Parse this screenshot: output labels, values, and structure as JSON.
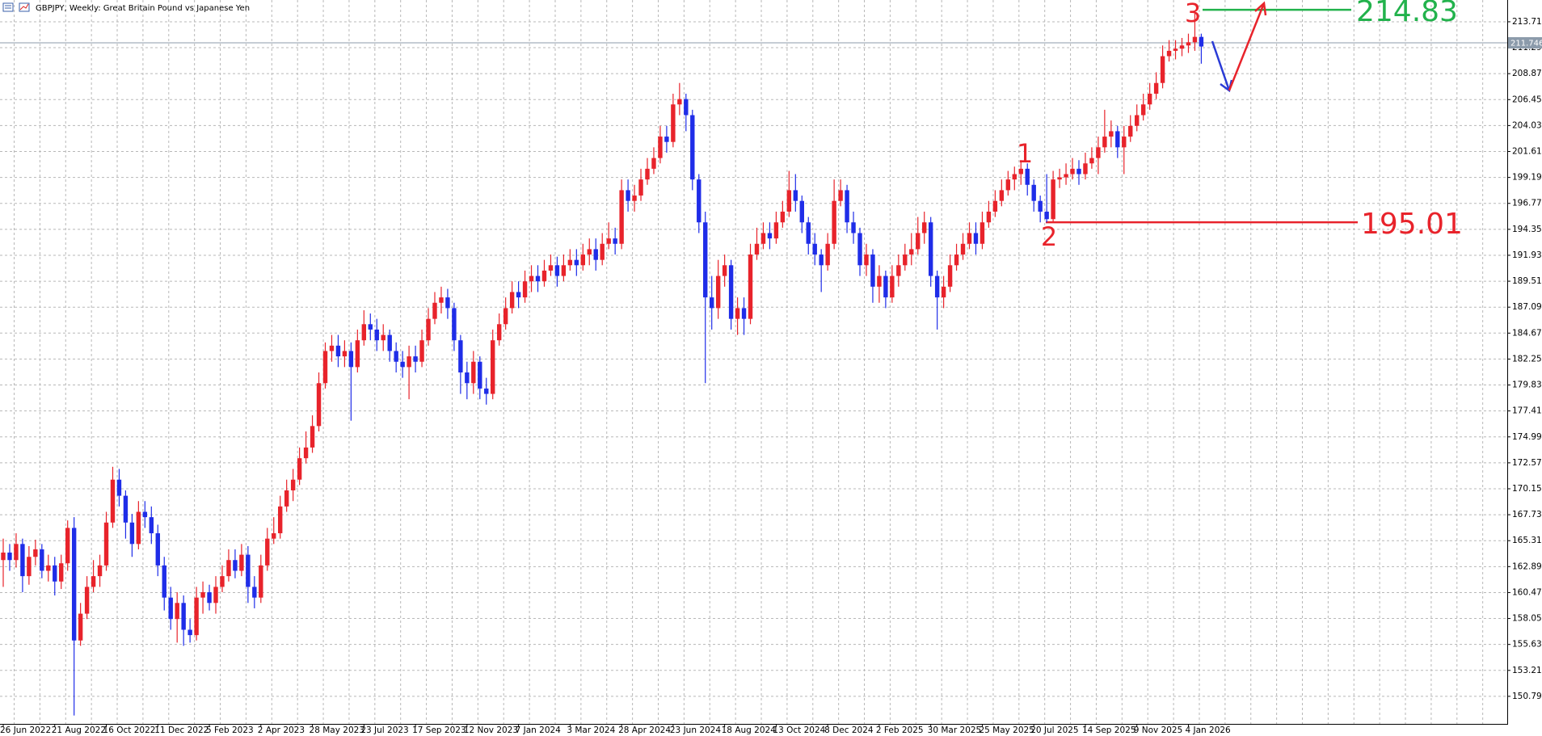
{
  "chart_data": {
    "type": "candlestick",
    "title": "GBPJPY, Weekly:  Great Britain Pound vs Japanese Yen",
    "up_color": "#e8232b",
    "down_color": "#1f2de8",
    "grid": true,
    "categories": [
      "26 Jun 2022",
      null,
      null,
      null,
      null,
      null,
      null,
      null,
      "21 Aug 2022",
      null,
      null,
      null,
      null,
      null,
      null,
      null,
      "16 Oct 2022",
      null,
      null,
      null,
      null,
      null,
      null,
      null,
      "11 Dec 2022",
      null,
      null,
      null,
      null,
      null,
      null,
      null,
      "5 Feb 2023",
      null,
      null,
      null,
      null,
      null,
      null,
      null,
      "2 Apr 2023",
      null,
      null,
      null,
      null,
      null,
      null,
      null,
      "28 May 2023",
      null,
      null,
      null,
      null,
      null,
      null,
      null,
      "23 Jul 2023",
      null,
      null,
      null,
      null,
      null,
      null,
      null,
      "17 Sep 2023",
      null,
      null,
      null,
      null,
      null,
      null,
      null,
      "12 Nov 2023",
      null,
      null,
      null,
      null,
      null,
      null,
      null,
      "7 Jan 2024",
      null,
      null,
      null,
      null,
      null,
      null,
      null,
      "3 Mar 2024",
      null,
      null,
      null,
      null,
      null,
      null,
      null,
      "28 Apr 2024",
      null,
      null,
      null,
      null,
      null,
      null,
      null,
      "23 Jun 2024",
      null,
      null,
      null,
      null,
      null,
      null,
      null,
      "18 Aug 2024",
      null,
      null,
      null,
      null,
      null,
      null,
      null,
      "13 Oct 2024",
      null,
      null,
      null,
      null,
      null,
      null,
      null,
      "8 Dec 2024",
      null,
      null,
      null,
      null,
      null,
      null,
      null,
      "2 Feb 2025",
      null,
      null,
      null,
      null,
      null,
      null,
      null,
      "30 Mar 2025",
      null,
      null,
      null,
      null,
      null,
      null,
      null,
      "25 May 2025",
      null,
      null,
      null,
      null,
      null,
      null,
      null,
      "20 Jul 2025",
      null,
      null,
      null,
      null,
      null,
      null,
      null,
      "14 Sep 2025",
      null,
      null,
      null,
      null,
      null,
      null,
      null,
      "9 Nov 2025",
      null,
      null,
      null,
      null,
      null,
      null,
      null,
      "4 Jan 2026",
      null,
      null
    ],
    "open": [
      163.5,
      164.2,
      163.5,
      165.0,
      162.0,
      163.8,
      164.5,
      162.5,
      163.0,
      161.5,
      163.2,
      166.5,
      156.0,
      158.5,
      161.0,
      162.0,
      163.0,
      167.0,
      171.0,
      169.5,
      167.0,
      165.0,
      168.0,
      167.5,
      166.0,
      163.0,
      160.0,
      158.0,
      159.5,
      157.0,
      156.5,
      160.0,
      160.5,
      159.5,
      161.0,
      162.0,
      163.5,
      162.5,
      164.0,
      161.0,
      160.0,
      163.0,
      165.5,
      166.0,
      168.5,
      170.0,
      171.0,
      173.0,
      174.0,
      176.0,
      180.0,
      183.0,
      183.5,
      182.5,
      183.0,
      181.5,
      184.0,
      185.5,
      185.0,
      184.0,
      184.5,
      183.0,
      182.0,
      181.5,
      182.5,
      182.0,
      184.0,
      186.0,
      187.5,
      188.0,
      187.0,
      184.0,
      181.0,
      180.0,
      182.0,
      179.5,
      179.0,
      184.0,
      185.5,
      187.0,
      188.5,
      188.0,
      189.5,
      190.0,
      189.5,
      190.5,
      191.0,
      190.0,
      191.0,
      191.5,
      191.0,
      192.0,
      192.5,
      191.5,
      193.0,
      193.5,
      193.0,
      198.0,
      197.0,
      197.5,
      199.0,
      200.0,
      201.0,
      203.0,
      202.5,
      206.0,
      206.5,
      205.0,
      199.0,
      195.0,
      188.0,
      187.0,
      190.0,
      191.0,
      186.0,
      187.0,
      186.0,
      192.0,
      193.0,
      194.0,
      193.5,
      195.0,
      196.0,
      198.0,
      197.0,
      195.0,
      193.0,
      192.0,
      191.0,
      193.0,
      197.0,
      198.0,
      195.0,
      194.0,
      191.0,
      192.0,
      189.0,
      190.0,
      188.0,
      190.0,
      191.0,
      192.0,
      192.5,
      194.0,
      195.0,
      190.0,
      188.0,
      189.0,
      191.0,
      192.0,
      193.0,
      194.0,
      193.0,
      195.0,
      196.0,
      197.0,
      198.0,
      199.0,
      199.5,
      200.0,
      198.5,
      197.0,
      196.0,
      195.3,
      199.0,
      199.2,
      199.5,
      200.0,
      199.5,
      200.5,
      201.0,
      202.0,
      203.0,
      203.5,
      202.0,
      203.0,
      204.0,
      205.0,
      206.0,
      207.0,
      208.0,
      210.5,
      211.0,
      211.2,
      211.5,
      211.8,
      212.3
    ],
    "high": [
      165.5,
      165.0,
      166.0,
      165.5,
      164.8,
      165.4,
      165.0,
      164.0,
      163.8,
      164.0,
      167.2,
      167.5,
      159.5,
      162.0,
      163.5,
      164.0,
      168.0,
      172.2,
      172.0,
      170.0,
      167.8,
      169.0,
      169.0,
      168.5,
      166.8,
      163.8,
      161.0,
      160.5,
      160.2,
      158.0,
      161.0,
      161.5,
      161.2,
      162.0,
      163.0,
      164.5,
      164.5,
      165.0,
      164.8,
      162.0,
      164.0,
      166.5,
      167.5,
      169.5,
      171.0,
      172.0,
      174.0,
      175.5,
      177.0,
      181.0,
      183.8,
      184.5,
      184.5,
      184.0,
      183.8,
      185.0,
      186.8,
      186.5,
      186.0,
      185.5,
      185.0,
      183.8,
      183.0,
      183.5,
      183.5,
      185.0,
      187.0,
      188.5,
      189.0,
      188.8,
      187.5,
      184.5,
      182.0,
      183.0,
      182.5,
      180.5,
      185.0,
      186.5,
      188.0,
      189.5,
      189.5,
      190.5,
      191.0,
      191.0,
      191.5,
      192.0,
      191.8,
      192.0,
      192.5,
      192.5,
      193.0,
      193.5,
      193.5,
      194.0,
      195.0,
      194.5,
      199.0,
      199.0,
      198.5,
      200.0,
      201.0,
      202.0,
      204.0,
      204.0,
      207.0,
      208.0,
      207.0,
      205.5,
      199.5,
      196.0,
      190.0,
      191.5,
      192.0,
      191.5,
      188.0,
      188.0,
      193.0,
      194.5,
      195.0,
      195.0,
      196.0,
      197.0,
      199.8,
      199.5,
      197.5,
      195.5,
      194.0,
      192.5,
      194.0,
      199.0,
      199.0,
      198.5,
      196.0,
      194.5,
      193.0,
      192.5,
      191.0,
      190.5,
      191.0,
      192.0,
      193.0,
      194.0,
      195.5,
      196.0,
      195.5,
      190.5,
      190.0,
      192.0,
      193.0,
      194.0,
      195.0,
      195.0,
      196.0,
      197.0,
      198.0,
      199.0,
      199.8,
      200.2,
      200.8,
      200.5,
      199.0,
      197.5,
      199.5,
      199.8,
      200.0,
      200.5,
      201.0,
      200.8,
      201.5,
      202.0,
      203.0,
      205.5,
      204.5,
      204.0,
      204.0,
      205.0,
      206.0,
      207.0,
      208.0,
      209.0,
      211.5,
      212.0,
      212.0,
      212.2,
      212.6,
      214.6,
      212.6
    ],
    "low": [
      161.0,
      162.5,
      162.8,
      160.5,
      161.2,
      163.0,
      161.8,
      161.5,
      160.2,
      160.8,
      162.5,
      149.0,
      155.5,
      158.0,
      160.5,
      161.0,
      162.5,
      166.5,
      168.5,
      165.5,
      163.8,
      164.5,
      166.5,
      165.0,
      162.0,
      158.8,
      157.0,
      155.8,
      155.5,
      155.8,
      156.0,
      158.5,
      158.8,
      158.5,
      160.5,
      161.5,
      161.8,
      162.0,
      159.5,
      159.0,
      159.5,
      162.5,
      165.0,
      165.5,
      168.0,
      169.0,
      170.5,
      172.5,
      173.5,
      175.5,
      179.5,
      182.0,
      181.5,
      181.5,
      176.5,
      181.0,
      183.5,
      184.0,
      183.0,
      183.0,
      182.0,
      181.0,
      180.5,
      178.5,
      181.0,
      181.5,
      183.5,
      185.5,
      186.5,
      186.0,
      183.0,
      179.0,
      178.5,
      179.0,
      178.5,
      178.0,
      178.5,
      183.5,
      185.0,
      186.5,
      187.0,
      187.5,
      188.5,
      188.5,
      189.0,
      190.0,
      189.0,
      189.5,
      190.5,
      190.0,
      190.5,
      191.0,
      190.5,
      191.0,
      192.5,
      192.0,
      192.5,
      196.0,
      196.0,
      197.0,
      198.5,
      199.5,
      200.5,
      201.5,
      202.0,
      205.0,
      203.5,
      198.0,
      194.0,
      180.0,
      185.0,
      186.0,
      189.0,
      185.0,
      184.5,
      184.5,
      185.5,
      191.5,
      192.5,
      192.5,
      193.0,
      194.5,
      195.5,
      196.0,
      194.0,
      192.0,
      191.0,
      188.5,
      190.5,
      192.5,
      196.5,
      194.0,
      193.0,
      190.0,
      190.0,
      187.5,
      187.5,
      187.0,
      187.5,
      189.0,
      190.5,
      191.0,
      192.0,
      193.0,
      189.0,
      185.0,
      187.0,
      188.5,
      190.5,
      191.5,
      192.5,
      192.0,
      192.5,
      194.5,
      195.5,
      196.5,
      197.5,
      198.0,
      198.5,
      197.5,
      196.0,
      195.0,
      195.0,
      195.0,
      198.2,
      198.5,
      199.0,
      198.5,
      199.0,
      200.0,
      199.5,
      201.5,
      202.0,
      201.0,
      199.5,
      202.5,
      203.5,
      204.5,
      205.5,
      206.5,
      207.5,
      210.0,
      210.2,
      210.5,
      210.8,
      211.0,
      209.8
    ],
    "close": [
      164.2,
      163.5,
      165.0,
      162.0,
      163.8,
      164.5,
      162.5,
      163.0,
      161.5,
      163.2,
      166.5,
      156.0,
      158.5,
      161.0,
      162.0,
      163.0,
      167.0,
      171.0,
      169.5,
      167.0,
      165.0,
      168.0,
      167.5,
      166.0,
      163.0,
      160.0,
      158.0,
      159.5,
      157.0,
      156.5,
      160.0,
      160.5,
      159.5,
      161.0,
      162.0,
      163.5,
      162.5,
      164.0,
      161.0,
      160.0,
      163.0,
      165.5,
      166.0,
      168.5,
      170.0,
      171.0,
      173.0,
      174.0,
      176.0,
      180.0,
      183.0,
      183.5,
      182.5,
      183.0,
      181.5,
      184.0,
      185.5,
      185.0,
      184.0,
      184.5,
      183.0,
      182.0,
      181.5,
      182.5,
      182.0,
      184.0,
      186.0,
      187.5,
      188.0,
      187.0,
      184.0,
      181.0,
      180.0,
      182.0,
      179.5,
      179.0,
      184.0,
      185.5,
      187.0,
      188.5,
      188.0,
      189.5,
      190.0,
      189.5,
      190.5,
      191.0,
      190.0,
      191.0,
      191.5,
      191.0,
      192.0,
      192.5,
      191.5,
      193.0,
      193.5,
      193.0,
      198.0,
      197.0,
      197.5,
      199.0,
      200.0,
      201.0,
      203.0,
      202.5,
      206.0,
      206.5,
      205.0,
      199.0,
      195.0,
      188.0,
      187.0,
      190.0,
      191.0,
      186.0,
      187.0,
      186.0,
      192.0,
      193.0,
      194.0,
      193.5,
      195.0,
      196.0,
      198.0,
      197.0,
      195.0,
      193.0,
      192.0,
      191.0,
      193.0,
      197.0,
      198.0,
      195.0,
      194.0,
      191.0,
      192.0,
      189.0,
      190.0,
      188.0,
      190.0,
      191.0,
      192.0,
      192.5,
      194.0,
      195.0,
      190.0,
      188.0,
      189.0,
      191.0,
      192.0,
      193.0,
      194.0,
      193.0,
      195.0,
      196.0,
      197.0,
      198.0,
      199.0,
      199.5,
      200.0,
      198.5,
      197.0,
      196.0,
      195.3,
      199.0,
      199.2,
      199.5,
      200.0,
      199.5,
      200.5,
      201.0,
      202.0,
      203.0,
      203.5,
      202.0,
      203.0,
      204.0,
      205.0,
      206.0,
      207.0,
      208.0,
      210.5,
      211.0,
      211.2,
      211.5,
      211.8,
      212.3,
      211.4
    ],
    "ylim": [
      148.22,
      215.74
    ],
    "yticks": [
      {
        "value": 150.79,
        "label": "150.790"
      },
      {
        "value": 153.21,
        "label": "153.210"
      },
      {
        "value": 155.63,
        "label": "155.630"
      },
      {
        "value": 158.05,
        "label": "158.050"
      },
      {
        "value": 160.47,
        "label": "160.470"
      },
      {
        "value": 162.89,
        "label": "162.890"
      },
      {
        "value": 165.31,
        "label": "165.310"
      },
      {
        "value": 167.73,
        "label": "167.730"
      },
      {
        "value": 170.15,
        "label": "170.150"
      },
      {
        "value": 172.57,
        "label": "172.570"
      },
      {
        "value": 174.99,
        "label": "174.990"
      },
      {
        "value": 177.41,
        "label": "177.410"
      },
      {
        "value": 179.83,
        "label": "179.830"
      },
      {
        "value": 182.25,
        "label": "182.250"
      },
      {
        "value": 184.67,
        "label": "184.670"
      },
      {
        "value": 187.09,
        "label": "187.090"
      },
      {
        "value": 189.51,
        "label": "189.510"
      },
      {
        "value": 191.93,
        "label": "191.930"
      },
      {
        "value": 194.35,
        "label": "194.350"
      },
      {
        "value": 196.77,
        "label": "196.770"
      },
      {
        "value": 199.19,
        "label": "199.190"
      },
      {
        "value": 201.61,
        "label": "201.610"
      },
      {
        "value": 204.03,
        "label": "204.030"
      },
      {
        "value": 206.45,
        "label": "206.450"
      },
      {
        "value": 208.87,
        "label": "208.870"
      },
      {
        "value": 211.29,
        "label": "211.290"
      },
      {
        "value": 213.71,
        "label": "213.710"
      }
    ],
    "price_line": {
      "value": 211.746,
      "color": "#8c9bab"
    },
    "levels": [
      {
        "value": 214.83,
        "color": "#22b24c"
      },
      {
        "value": 195.01,
        "color": "#e8232b"
      }
    ],
    "annotations": [
      {
        "text": "1",
        "color": "#e8232b"
      },
      {
        "text": "2",
        "color": "#e8232b"
      },
      {
        "text": "3",
        "color": "#e8232b"
      }
    ]
  }
}
